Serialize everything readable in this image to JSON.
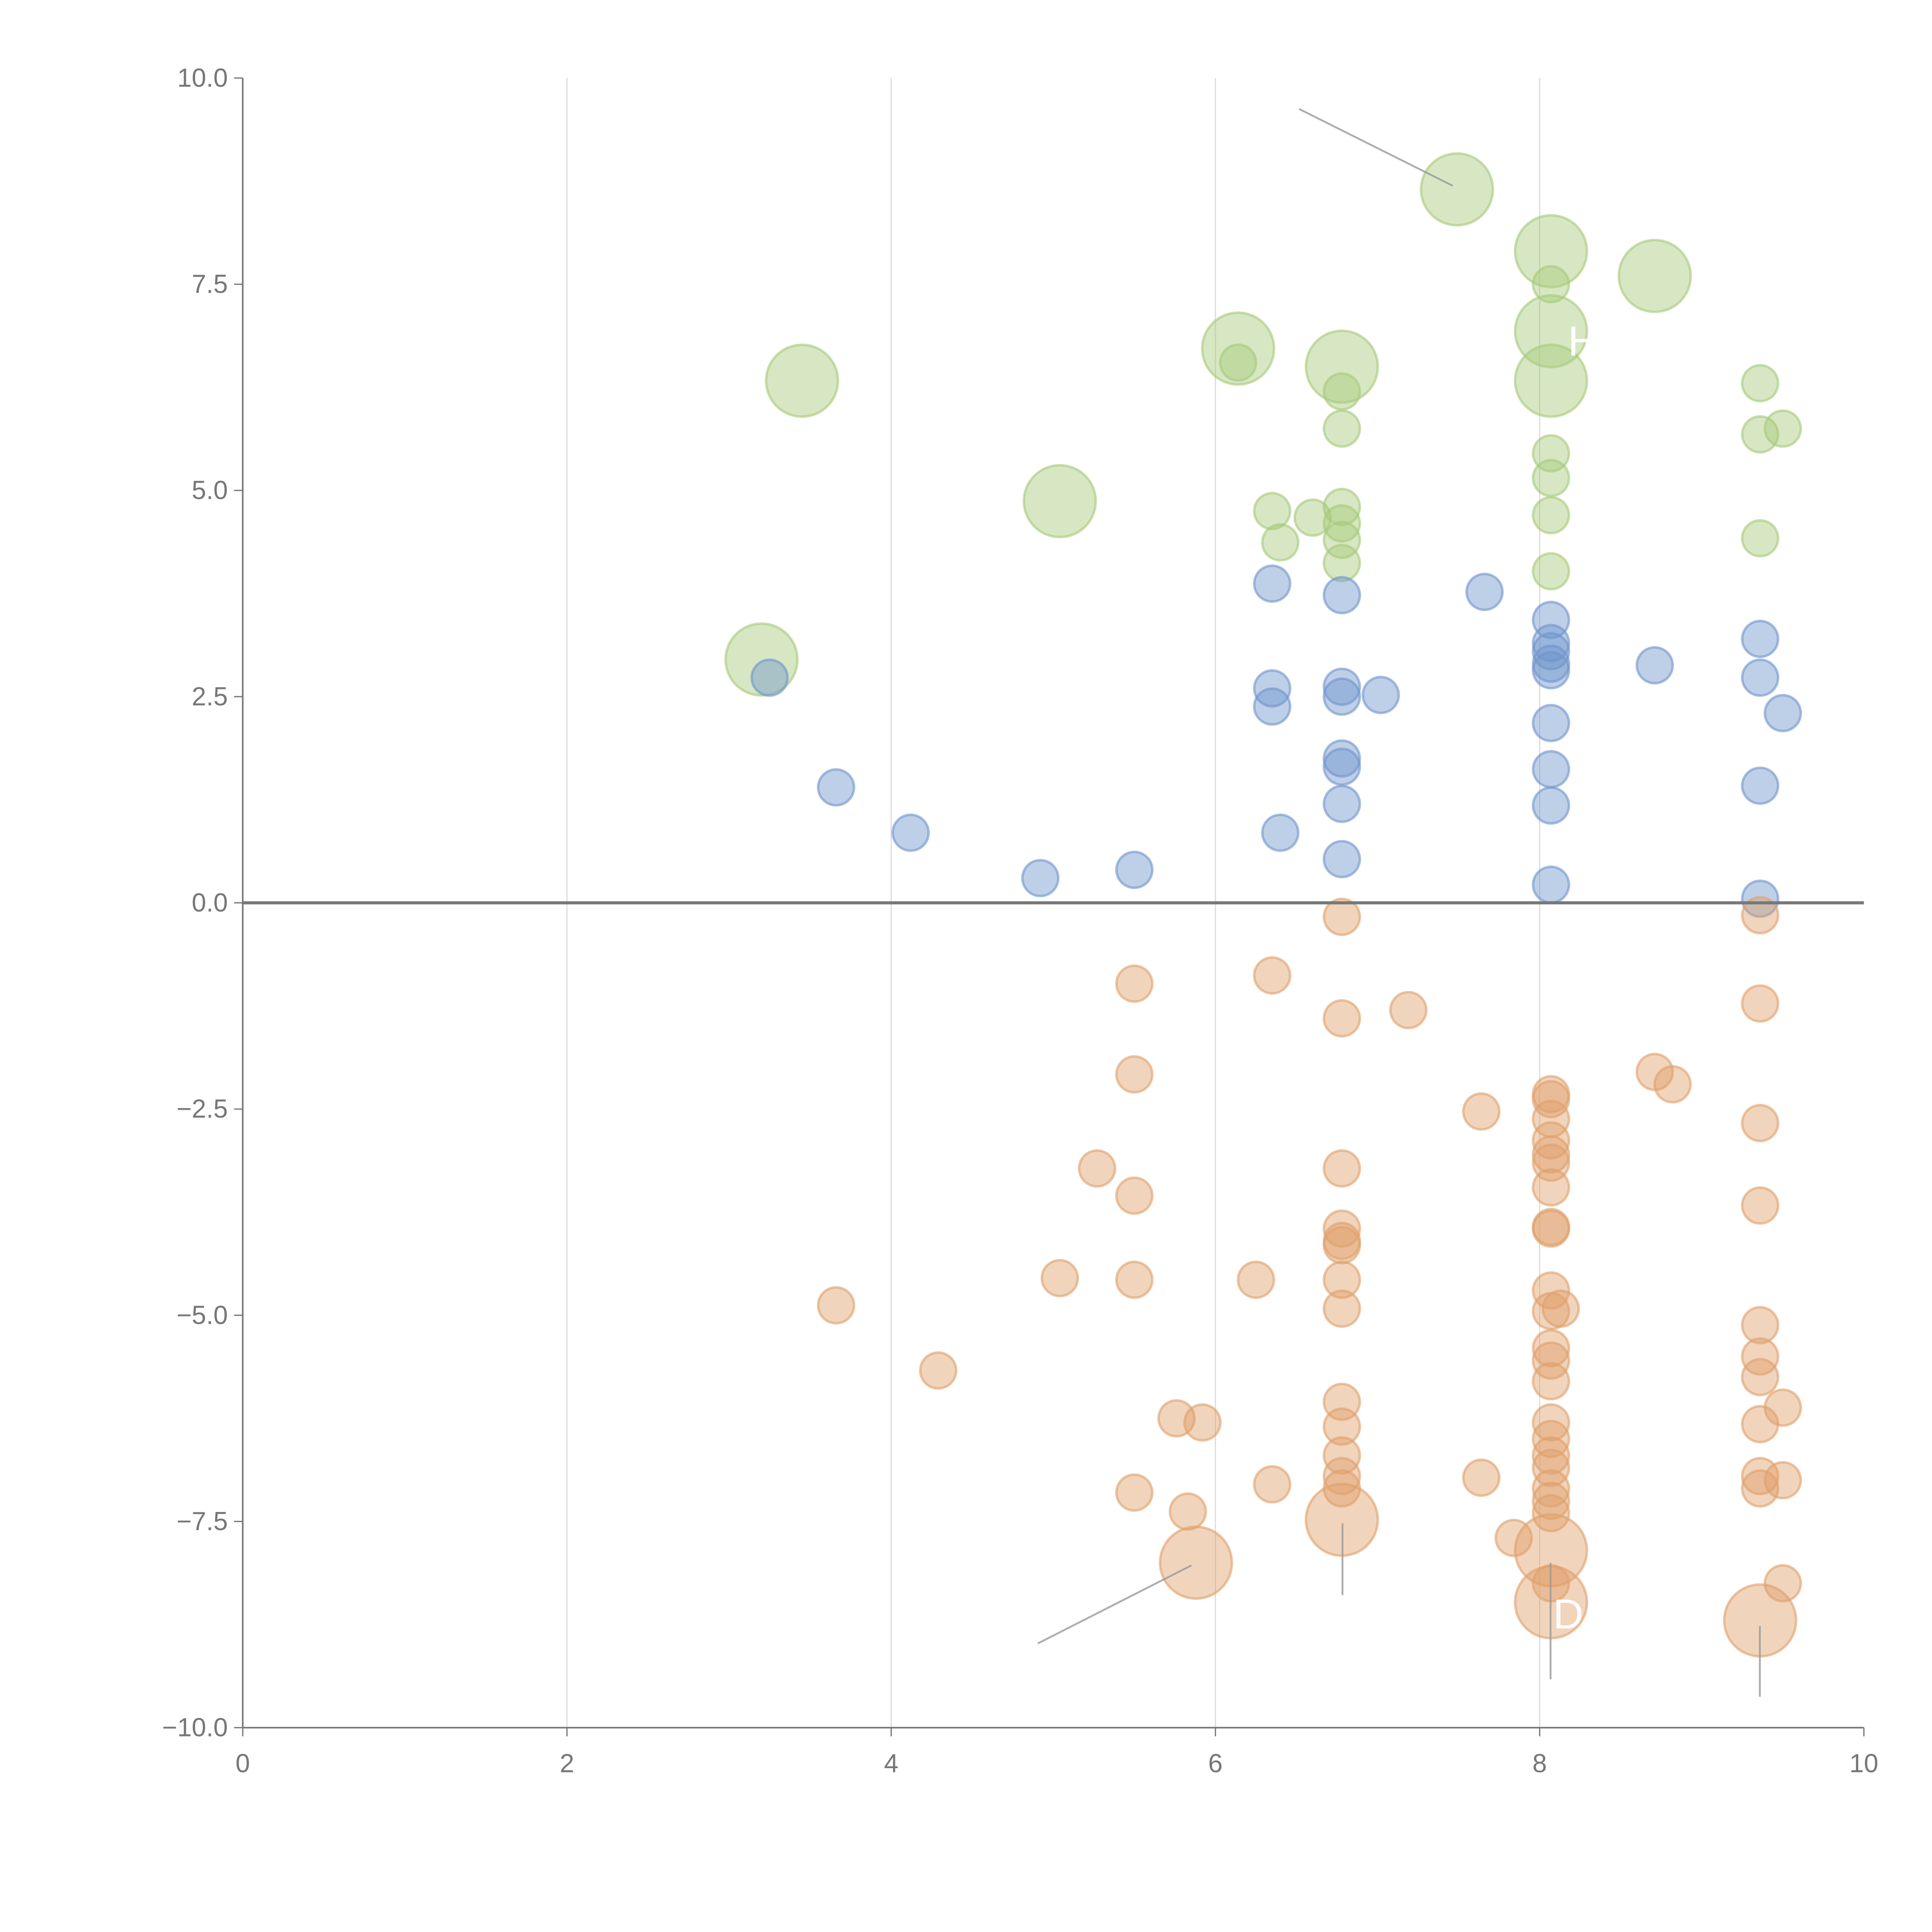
{
  "chart_data": {
    "type": "scatter",
    "title": "",
    "xlabel": "",
    "ylabel": "",
    "xlim": [
      0,
      10
    ],
    "ylim": [
      -10,
      10
    ],
    "grid": "vertical",
    "x_ticks": [
      "0",
      "2",
      "4",
      "6",
      "8",
      "10"
    ],
    "y_ticks": [
      "10.0",
      "7.5",
      "5.0",
      "2.5",
      "0.0",
      "−2.5",
      "−5.0",
      "−7.5",
      "−10.0"
    ],
    "annotations": [
      "H",
      "D"
    ],
    "series": [
      {
        "name": "green",
        "color": "#a6c97a",
        "small": [
          [
            6.14,
            6.55
          ],
          [
            6.78,
            6.2
          ],
          [
            6.78,
            5.75
          ],
          [
            8.07,
            7.5
          ],
          [
            8.07,
            5.45
          ],
          [
            8.07,
            5.15
          ],
          [
            8.07,
            4.7
          ],
          [
            8.07,
            4.02
          ],
          [
            9.36,
            6.3
          ],
          [
            9.36,
            5.68
          ],
          [
            9.5,
            5.75
          ],
          [
            9.36,
            4.42
          ],
          [
            6.35,
            4.75
          ],
          [
            6.4,
            4.37
          ],
          [
            6.6,
            4.67
          ],
          [
            6.78,
            4.8
          ],
          [
            6.78,
            4.6
          ],
          [
            6.78,
            4.4
          ],
          [
            6.78,
            4.12
          ]
        ],
        "large": [
          [
            7.49,
            8.65
          ],
          [
            8.07,
            7.9
          ],
          [
            8.71,
            7.6
          ],
          [
            6.14,
            6.72
          ],
          [
            6.78,
            6.5
          ],
          [
            8.07,
            6.93
          ],
          [
            8.07,
            6.33
          ],
          [
            3.45,
            6.33
          ],
          [
            5.04,
            4.87
          ],
          [
            3.2,
            2.95
          ]
        ]
      },
      {
        "name": "blue",
        "color": "#6f95cc",
        "small": [
          [
            3.25,
            2.73
          ],
          [
            3.66,
            1.4
          ],
          [
            4.12,
            0.85
          ],
          [
            4.92,
            0.3
          ],
          [
            5.5,
            0.4
          ],
          [
            6.35,
            3.87
          ],
          [
            6.35,
            2.6
          ],
          [
            6.35,
            2.38
          ],
          [
            6.4,
            0.85
          ],
          [
            6.78,
            3.73
          ],
          [
            6.78,
            2.62
          ],
          [
            6.78,
            2.5
          ],
          [
            7.02,
            2.52
          ],
          [
            6.78,
            1.75
          ],
          [
            6.78,
            1.65
          ],
          [
            6.78,
            1.2
          ],
          [
            6.78,
            0.53
          ],
          [
            7.66,
            3.77
          ],
          [
            8.07,
            3.43
          ],
          [
            8.07,
            3.15
          ],
          [
            8.07,
            3.05
          ],
          [
            8.07,
            2.9
          ],
          [
            8.07,
            2.82
          ],
          [
            8.07,
            2.18
          ],
          [
            8.07,
            1.62
          ],
          [
            8.07,
            1.18
          ],
          [
            8.07,
            0.22
          ],
          [
            8.71,
            2.88
          ],
          [
            9.36,
            3.2
          ],
          [
            9.36,
            2.73
          ],
          [
            9.5,
            2.3
          ],
          [
            9.36,
            1.42
          ],
          [
            9.36,
            0.05
          ]
        ],
        "large": []
      },
      {
        "name": "orange",
        "color": "#e0a06a",
        "small": [
          [
            6.78,
            -0.17
          ],
          [
            5.5,
            -0.98
          ],
          [
            6.35,
            -0.88
          ],
          [
            6.78,
            -1.4
          ],
          [
            7.19,
            -1.3
          ],
          [
            5.5,
            -2.08
          ],
          [
            7.64,
            -2.53
          ],
          [
            5.27,
            -3.22
          ],
          [
            5.5,
            -3.55
          ],
          [
            6.78,
            -3.22
          ],
          [
            6.78,
            -3.95
          ],
          [
            6.78,
            -4.1
          ],
          [
            6.78,
            -4.15
          ],
          [
            5.04,
            -4.55
          ],
          [
            5.5,
            -4.57
          ],
          [
            6.25,
            -4.57
          ],
          [
            6.78,
            -4.57
          ],
          [
            6.78,
            -4.92
          ],
          [
            3.66,
            -4.88
          ],
          [
            4.29,
            -5.67
          ],
          [
            5.76,
            -6.25
          ],
          [
            5.92,
            -6.3
          ],
          [
            6.78,
            -6.05
          ],
          [
            6.78,
            -6.35
          ],
          [
            6.78,
            -6.7
          ],
          [
            6.78,
            -6.95
          ],
          [
            6.78,
            -7.1
          ],
          [
            5.5,
            -7.15
          ],
          [
            5.83,
            -7.38
          ],
          [
            6.35,
            -7.05
          ],
          [
            7.64,
            -6.97
          ],
          [
            7.84,
            -7.7
          ],
          [
            8.07,
            -2.32
          ],
          [
            8.07,
            -2.38
          ],
          [
            8.07,
            -2.62
          ],
          [
            8.07,
            -2.88
          ],
          [
            8.07,
            -3.05
          ],
          [
            8.07,
            -3.15
          ],
          [
            8.07,
            -3.45
          ],
          [
            8.07,
            -3.93
          ],
          [
            8.07,
            -3.95
          ],
          [
            8.07,
            -4.7
          ],
          [
            8.07,
            -4.95
          ],
          [
            8.13,
            -4.92
          ],
          [
            8.07,
            -5.4
          ],
          [
            8.07,
            -5.55
          ],
          [
            8.07,
            -5.8
          ],
          [
            8.07,
            -6.3
          ],
          [
            8.07,
            -6.5
          ],
          [
            8.07,
            -6.7
          ],
          [
            8.07,
            -6.85
          ],
          [
            8.07,
            -7.1
          ],
          [
            8.07,
            -7.25
          ],
          [
            8.07,
            -7.4
          ],
          [
            8.07,
            -8.25
          ],
          [
            8.71,
            -2.05
          ],
          [
            8.82,
            -2.2
          ],
          [
            9.36,
            -0.15
          ],
          [
            9.36,
            -1.22
          ],
          [
            9.36,
            -2.67
          ],
          [
            9.36,
            -3.67
          ],
          [
            9.36,
            -5.12
          ],
          [
            9.36,
            -5.5
          ],
          [
            9.36,
            -5.75
          ],
          [
            9.36,
            -6.32
          ],
          [
            9.36,
            -6.95
          ],
          [
            9.36,
            -7.1
          ],
          [
            9.5,
            -6.12
          ],
          [
            9.5,
            -7.0
          ],
          [
            9.5,
            -8.25
          ]
        ],
        "large": [
          [
            6.78,
            -7.48
          ],
          [
            5.88,
            -8.0
          ],
          [
            8.07,
            -7.85
          ],
          [
            8.07,
            -8.48
          ],
          [
            9.36,
            -8.7
          ]
        ]
      }
    ]
  }
}
